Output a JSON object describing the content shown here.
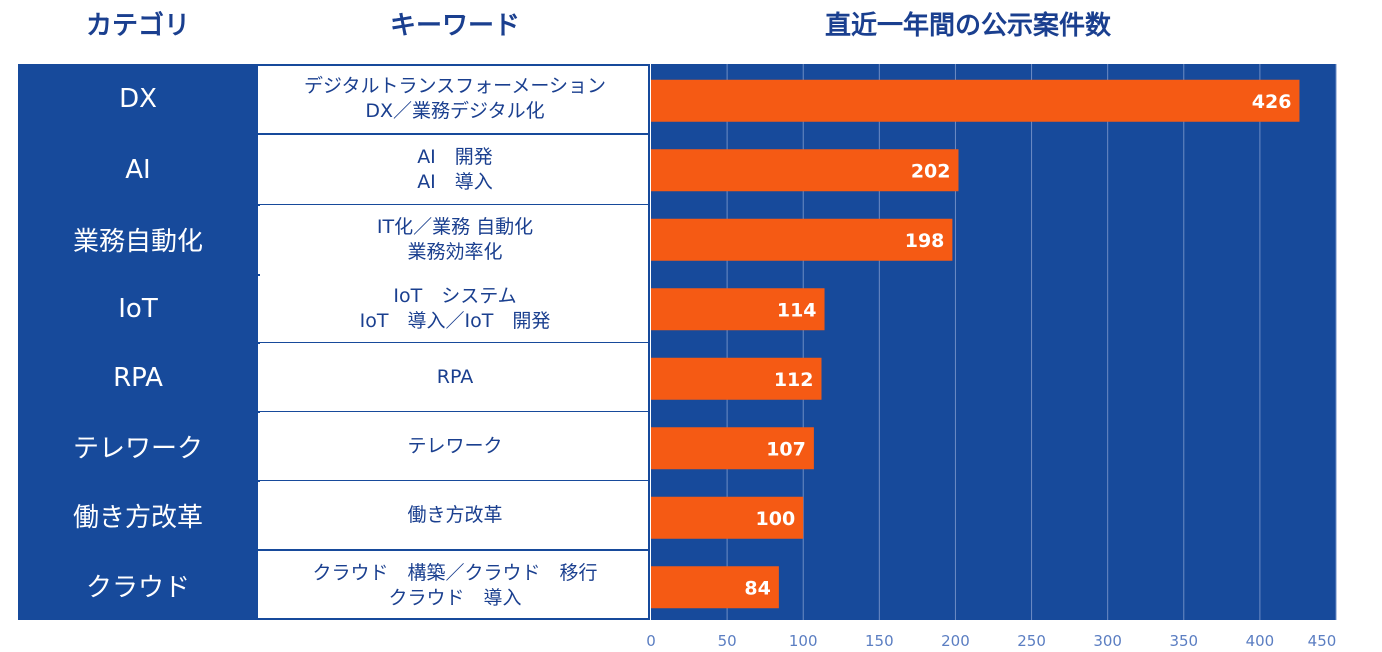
{
  "headers": {
    "category": "カテゴリ",
    "keyword": "キーワード",
    "chart": "直近一年間の公示案件数"
  },
  "rows": [
    {
      "category": "DX",
      "keywords": [
        "デジタルトランスフォーメーション",
        "DX／業務デジタル化"
      ]
    },
    {
      "category": "AI",
      "keywords": [
        "AI　開発",
        "AI　導入"
      ]
    },
    {
      "category": "業務自動化",
      "keywords": [
        "IT化／業務 自動化",
        "業務効率化"
      ]
    },
    {
      "category": "IoT",
      "keywords": [
        "IoT　システム",
        "IoT　導入／IoT　開発"
      ]
    },
    {
      "category": "RPA",
      "keywords": [
        "RPA"
      ]
    },
    {
      "category": "テレワーク",
      "keywords": [
        "テレワーク"
      ]
    },
    {
      "category": "働き方改革",
      "keywords": [
        "働き方改革"
      ]
    },
    {
      "category": "クラウド",
      "keywords": [
        "クラウド　構築／クラウド　移行",
        "クラウド　導入"
      ]
    }
  ],
  "chart_data": {
    "type": "bar",
    "orientation": "horizontal",
    "title": "直近一年間の公示案件数",
    "categories": [
      "DX",
      "AI",
      "業務自動化",
      "IoT",
      "RPA",
      "テレワーク",
      "働き方改革",
      "クラウド"
    ],
    "values": [
      426,
      202,
      198,
      114,
      112,
      107,
      100,
      84
    ],
    "xlim": [
      0,
      450
    ],
    "xticks": [
      0,
      50,
      100,
      150,
      200,
      250,
      300,
      350,
      400,
      450
    ],
    "grid": true,
    "colors": {
      "background": "#174a9b",
      "bar": "#f55a14",
      "grid": "#6d8cc4",
      "tick_label": "#5b7ec2",
      "value_label": "#ffffff"
    }
  }
}
